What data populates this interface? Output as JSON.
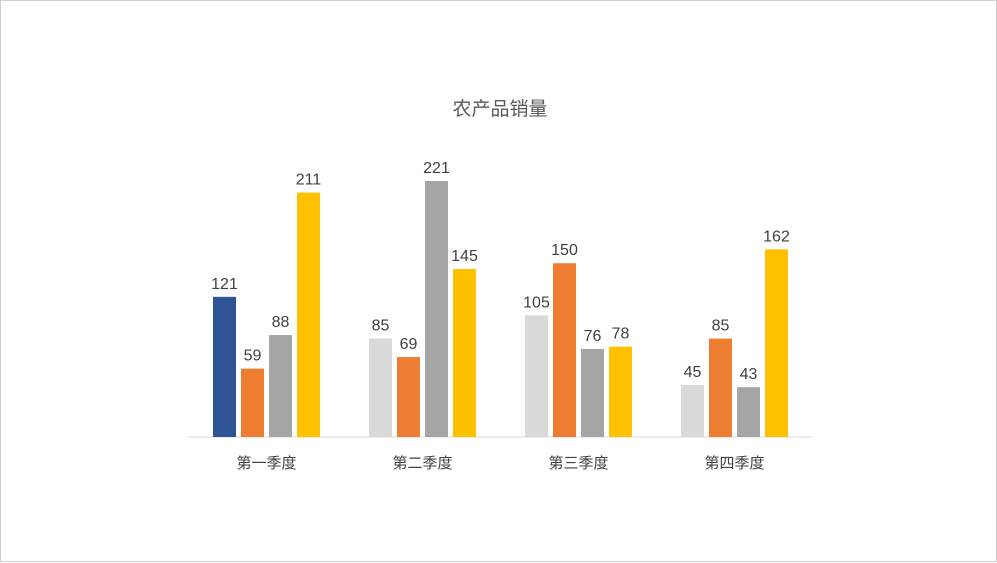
{
  "chart_data": {
    "type": "bar",
    "title": "农产品销量",
    "categories": [
      "第一季度",
      "第二季度",
      "第三季度",
      "第四季度"
    ],
    "series": [
      {
        "values": [
          121,
          85,
          105,
          45
        ]
      },
      {
        "values": [
          59,
          69,
          150,
          85
        ]
      },
      {
        "values": [
          88,
          221,
          76,
          43
        ]
      },
      {
        "values": [
          211,
          145,
          78,
          162
        ]
      }
    ],
    "bar_colors": [
      [
        "#2f5597",
        "#ed7d31",
        "#a5a5a5",
        "#ffc000"
      ],
      [
        "#d9d9d9",
        "#ed7d31",
        "#a5a5a5",
        "#ffc000"
      ],
      [
        "#d9d9d9",
        "#ed7d31",
        "#a5a5a5",
        "#ffc000"
      ],
      [
        "#d9d9d9",
        "#ed7d31",
        "#a5a5a5",
        "#ffc000"
      ]
    ],
    "data_labels": true,
    "grid": false,
    "legend": "none",
    "ylim": [
      0,
      240
    ]
  }
}
